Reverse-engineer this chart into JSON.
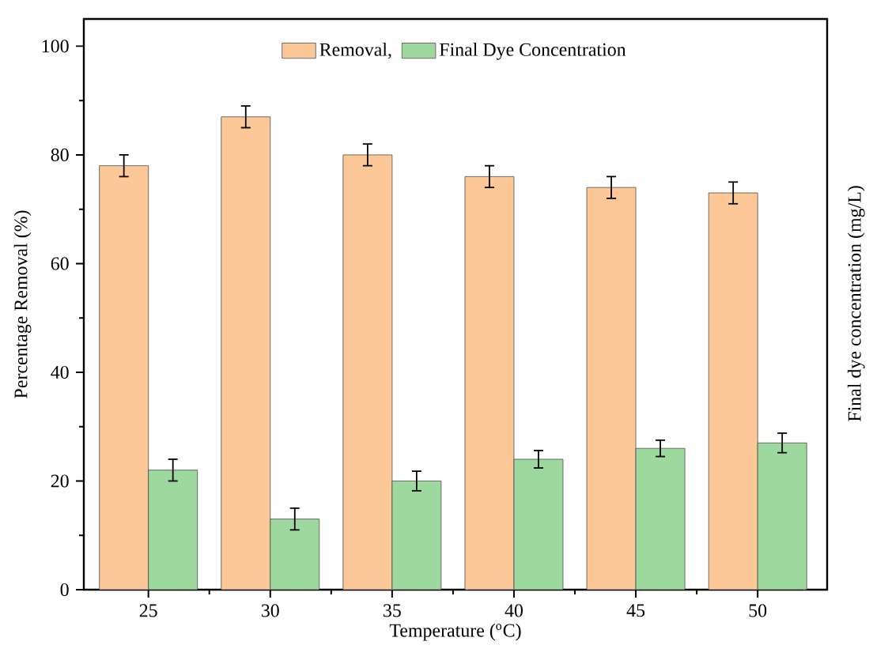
{
  "chart_data": {
    "type": "bar",
    "xlabel": "Temperature ($^{o}$C)",
    "ylabel": "Percentage Removal (%)",
    "y2label": "Final dye concentration (mg/L)",
    "categories": [
      "25",
      "30",
      "35",
      "40",
      "45",
      "50"
    ],
    "series": [
      {
        "name": "Removal,",
        "color": "#fcc897",
        "values": [
          78,
          87,
          80,
          76,
          74,
          73
        ],
        "errors": [
          2,
          2,
          2,
          2,
          2,
          2
        ]
      },
      {
        "name": "Final Dye Concentration",
        "color": "#9dd89f",
        "values": [
          22,
          13,
          20,
          24,
          26,
          27
        ],
        "errors": [
          2,
          2,
          1.8,
          1.6,
          1.5,
          1.8
        ]
      }
    ],
    "ylim": [
      0,
      105
    ],
    "yticks": [
      0,
      20,
      40,
      60,
      80,
      100
    ],
    "grid": false,
    "legend": "top"
  }
}
